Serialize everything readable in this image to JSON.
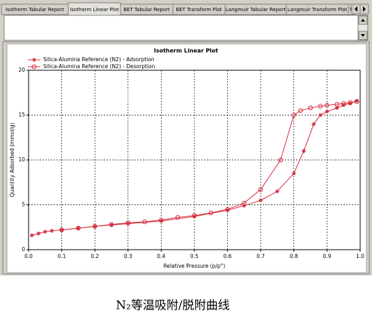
{
  "tabs": [
    "Isotherm Tabular Report",
    "Isotherm Linear Plot",
    "BET Tabular Report",
    "BET Transform Plot",
    "Langmuir Tabular Report",
    "Langmuir Transform Plot",
    "H"
  ],
  "caption": "N₂等温吸附/脱附曲线",
  "chart_data": {
    "type": "line",
    "title": "Isotherm Linear Plot",
    "xlabel": "Relative Pressure (p/p°)",
    "ylabel": "Quantity Adsorbed (mmol/g)",
    "xlim": [
      0,
      1
    ],
    "ylim": [
      0,
      20
    ],
    "xticks": [
      {
        "value": 0,
        "label": "0.0"
      },
      0.1,
      0.2,
      0.3,
      0.4,
      0.5,
      0.6,
      0.7,
      0.8,
      0.9,
      {
        "value": 1,
        "label": "1.0"
      }
    ],
    "yticks": [
      0,
      5,
      10,
      15,
      20
    ],
    "grid": true,
    "legend": "upper left",
    "series": [
      {
        "name": "Silica-Alumina Reference (N2) - Adsorption",
        "color": "#d42a3a",
        "marker": "plus",
        "x": [
          0.01,
          0.03,
          0.05,
          0.07,
          0.1,
          0.15,
          0.2,
          0.25,
          0.3,
          0.4,
          0.5,
          0.6,
          0.65,
          0.7,
          0.75,
          0.8,
          0.83,
          0.86,
          0.88,
          0.9,
          0.93,
          0.95,
          0.97,
          0.99
        ],
        "values": [
          1.6,
          1.8,
          2.0,
          2.1,
          2.2,
          2.4,
          2.6,
          2.75,
          2.9,
          3.2,
          3.7,
          4.4,
          4.9,
          5.5,
          6.5,
          8.5,
          11,
          14,
          15,
          15.4,
          15.8,
          16.1,
          16.3,
          16.6
        ]
      },
      {
        "name": "Silica-Alumina Reference (N2) - Desorption",
        "color": "#d42a3a",
        "marker": "circle",
        "x": [
          0.99,
          0.97,
          0.95,
          0.93,
          0.9,
          0.88,
          0.85,
          0.82,
          0.8,
          0.76,
          0.7,
          0.65,
          0.6,
          0.55,
          0.5,
          0.45,
          0.4,
          0.35,
          0.3,
          0.25,
          0.2,
          0.15,
          0.1
        ],
        "values": [
          16.5,
          16.4,
          16.3,
          16.2,
          16.1,
          16.0,
          15.8,
          15.5,
          15.0,
          10.0,
          6.7,
          5.2,
          4.5,
          4.1,
          3.8,
          3.6,
          3.3,
          3.1,
          3.0,
          2.8,
          2.6,
          2.4,
          2.2
        ]
      }
    ]
  }
}
